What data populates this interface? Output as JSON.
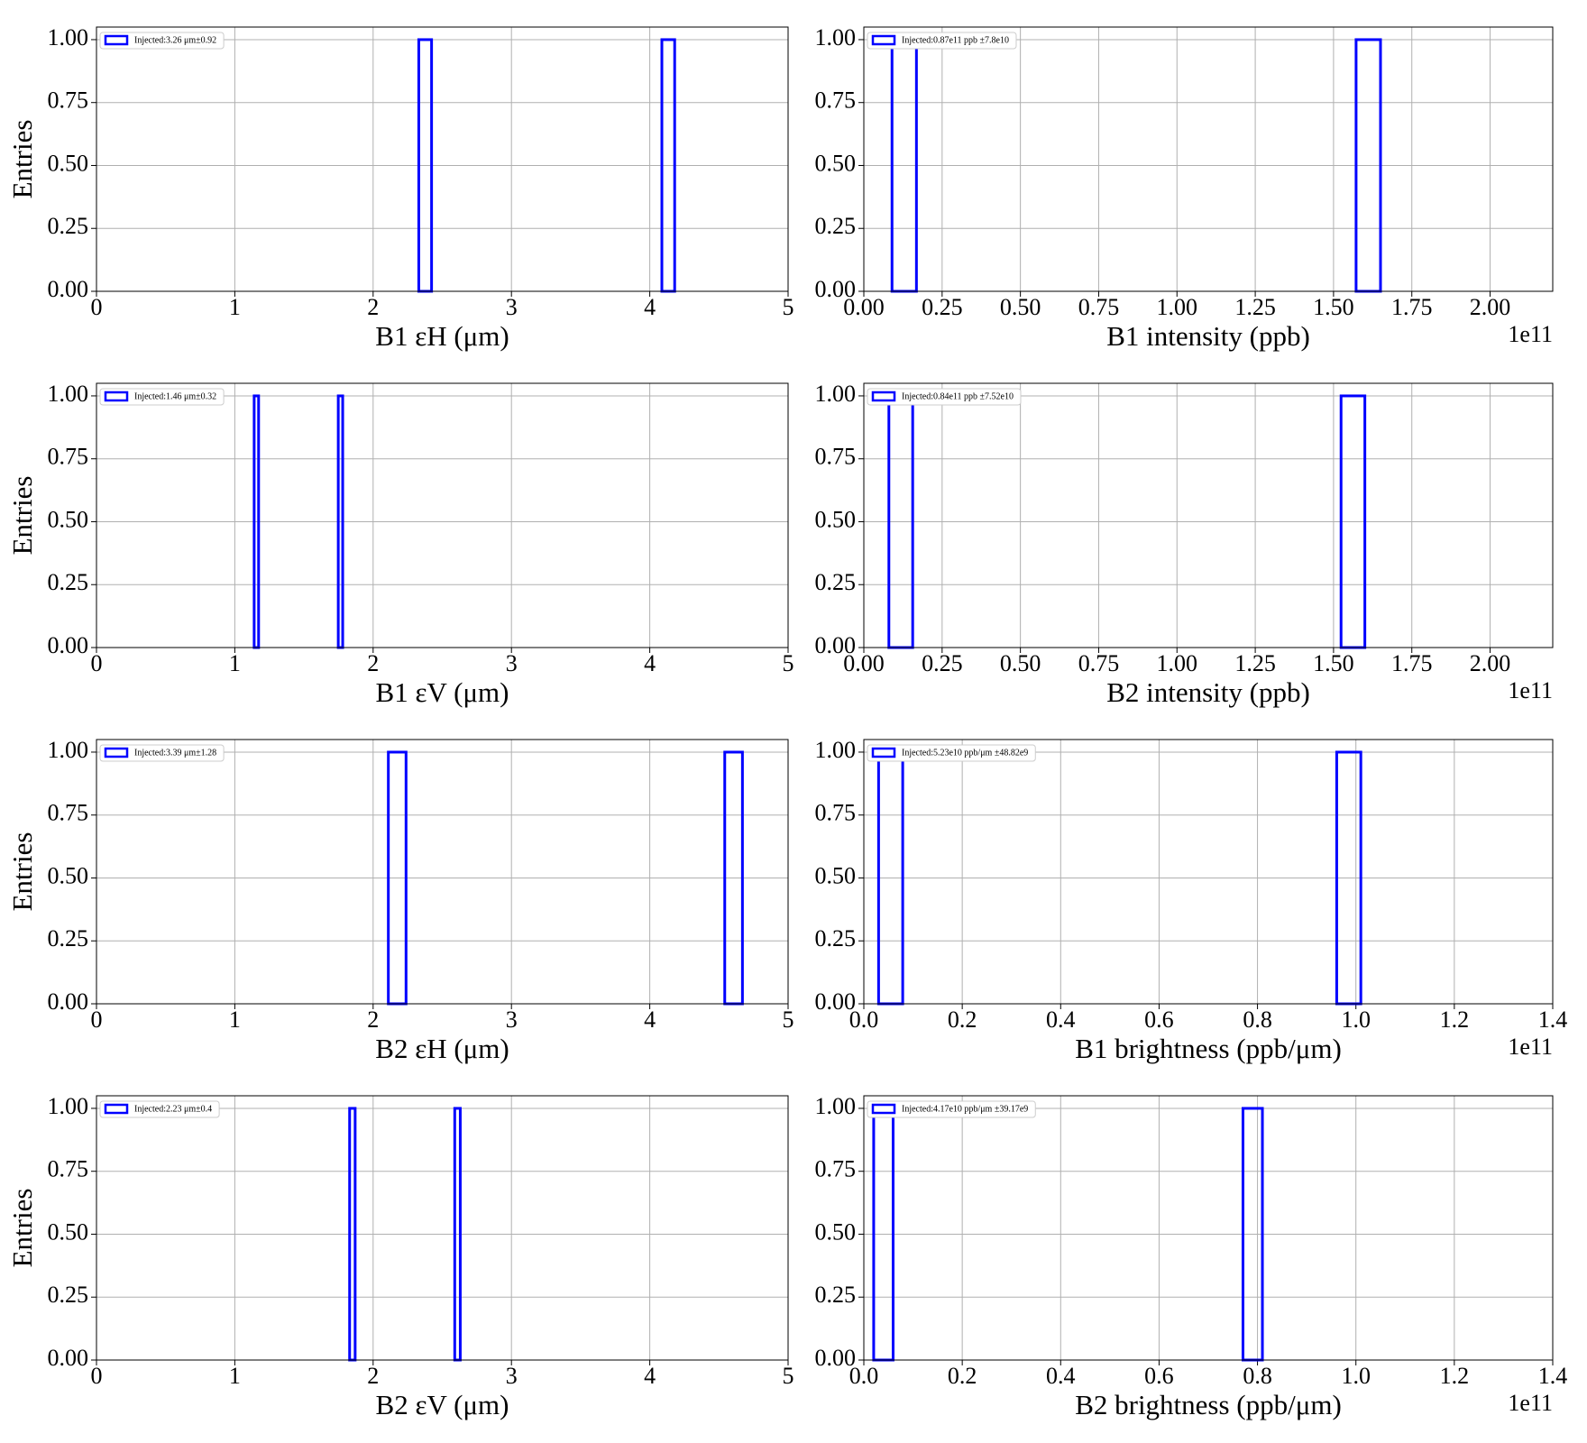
{
  "chart_data": [
    {
      "type": "histogram",
      "xlabel": "B1 εH (μm)",
      "ylabel": "Entries",
      "xlim": [
        0,
        5
      ],
      "xticks": [
        0,
        1,
        2,
        3,
        4,
        5
      ],
      "ylim": [
        0,
        1.05
      ],
      "yticks": [
        {
          "value": 0,
          "label": "0.00"
        },
        {
          "value": 0.25,
          "label": "0.25"
        },
        {
          "value": 0.5,
          "label": "0.50"
        },
        {
          "value": 0.75,
          "label": "0.75"
        },
        {
          "value": 1,
          "label": "1.00"
        }
      ],
      "grid": true,
      "legend": "upper left",
      "bins": [
        2.33,
        2.4225,
        2.515,
        2.6075,
        2.7,
        2.7925,
        2.885,
        2.9775,
        3.07,
        3.1625,
        3.255,
        3.3475,
        3.44,
        3.5325,
        3.625,
        3.7175,
        3.81,
        3.9025,
        3.995,
        4.0875,
        4.18
      ],
      "series": [
        {
          "name": "Injected:3.26 μm±0.92",
          "color": "#0000ff",
          "values": [
            1,
            0,
            0,
            0,
            0,
            0,
            0,
            0,
            0,
            0,
            0,
            0,
            0,
            0,
            0,
            0,
            0,
            0,
            0,
            1
          ]
        }
      ]
    },
    {
      "type": "histogram",
      "xlabel": "B1 intensity (ppb)",
      "offset": "1e11",
      "xlim": [
        0,
        2.2
      ],
      "xticks": [
        {
          "value": 0,
          "label": "0.00"
        },
        {
          "value": 0.25,
          "label": "0.25"
        },
        {
          "value": 0.5,
          "label": "0.50"
        },
        {
          "value": 0.75,
          "label": "0.75"
        },
        {
          "value": 1,
          "label": "1.00"
        },
        {
          "value": 1.25,
          "label": "1.25"
        },
        {
          "value": 1.5,
          "label": "1.50"
        },
        {
          "value": 1.75,
          "label": "1.75"
        },
        {
          "value": 2,
          "label": "2.00"
        }
      ],
      "ylim": [
        0,
        1.05
      ],
      "yticks": [
        {
          "value": 0,
          "label": "0.00"
        },
        {
          "value": 0.25,
          "label": "0.25"
        },
        {
          "value": 0.5,
          "label": "0.50"
        },
        {
          "value": 0.75,
          "label": "0.75"
        },
        {
          "value": 1,
          "label": "1.00"
        }
      ],
      "grid": true,
      "legend": "upper left",
      "bins": [
        0.09,
        0.168,
        0.246,
        0.324,
        0.402,
        0.48,
        0.558,
        0.636,
        0.714,
        0.792,
        0.87,
        0.948,
        1.026,
        1.104,
        1.182,
        1.26,
        1.338,
        1.416,
        1.494,
        1.572,
        1.65
      ],
      "series": [
        {
          "name": "Injected:0.87e11 ppb ±7.8e10",
          "color": "#0000ff",
          "values": [
            1,
            0,
            0,
            0,
            0,
            0,
            0,
            0,
            0,
            0,
            0,
            0,
            0,
            0,
            0,
            0,
            0,
            0,
            0,
            1
          ]
        }
      ]
    },
    {
      "type": "histogram",
      "xlabel": "B1 εV (μm)",
      "ylabel": "Entries",
      "xlim": [
        0,
        5
      ],
      "xticks": [
        0,
        1,
        2,
        3,
        4,
        5
      ],
      "ylim": [
        0,
        1.05
      ],
      "yticks": [
        {
          "value": 0,
          "label": "0.00"
        },
        {
          "value": 0.25,
          "label": "0.25"
        },
        {
          "value": 0.5,
          "label": "0.50"
        },
        {
          "value": 0.75,
          "label": "0.75"
        },
        {
          "value": 1,
          "label": "1.00"
        }
      ],
      "grid": true,
      "legend": "upper left",
      "bins": [
        1.14,
        1.172,
        1.204,
        1.236,
        1.268,
        1.3,
        1.332,
        1.364,
        1.396,
        1.428,
        1.46,
        1.492,
        1.524,
        1.556,
        1.588,
        1.62,
        1.652,
        1.684,
        1.716,
        1.748,
        1.78
      ],
      "series": [
        {
          "name": "Injected:1.46 μm±0.32",
          "color": "#0000ff",
          "values": [
            1,
            0,
            0,
            0,
            0,
            0,
            0,
            0,
            0,
            0,
            0,
            0,
            0,
            0,
            0,
            0,
            0,
            0,
            0,
            1
          ]
        }
      ]
    },
    {
      "type": "histogram",
      "xlabel": "B2 intensity (ppb)",
      "offset": "1e11",
      "xlim": [
        0,
        2.2
      ],
      "xticks": [
        {
          "value": 0,
          "label": "0.00"
        },
        {
          "value": 0.25,
          "label": "0.25"
        },
        {
          "value": 0.5,
          "label": "0.50"
        },
        {
          "value": 0.75,
          "label": "0.75"
        },
        {
          "value": 1,
          "label": "1.00"
        },
        {
          "value": 1.25,
          "label": "1.25"
        },
        {
          "value": 1.5,
          "label": "1.50"
        },
        {
          "value": 1.75,
          "label": "1.75"
        },
        {
          "value": 2,
          "label": "2.00"
        }
      ],
      "ylim": [
        0,
        1.05
      ],
      "yticks": [
        {
          "value": 0,
          "label": "0.00"
        },
        {
          "value": 0.25,
          "label": "0.25"
        },
        {
          "value": 0.5,
          "label": "0.50"
        },
        {
          "value": 0.75,
          "label": "0.75"
        },
        {
          "value": 1,
          "label": "1.00"
        }
      ],
      "grid": true,
      "legend": "upper left",
      "bins": [
        0.08,
        0.156,
        0.232,
        0.308,
        0.384,
        0.46,
        0.536,
        0.612,
        0.688,
        0.764,
        0.84,
        0.916,
        0.992,
        1.068,
        1.144,
        1.22,
        1.296,
        1.372,
        1.448,
        1.524,
        1.6
      ],
      "series": [
        {
          "name": "Injected:0.84e11 ppb ±7.52e10",
          "color": "#0000ff",
          "values": [
            1,
            0,
            0,
            0,
            0,
            0,
            0,
            0,
            0,
            0,
            0,
            0,
            0,
            0,
            0,
            0,
            0,
            0,
            0,
            1
          ]
        }
      ]
    },
    {
      "type": "histogram",
      "xlabel": "B2 εH (μm)",
      "ylabel": "Entries",
      "xlim": [
        0,
        5
      ],
      "xticks": [
        0,
        1,
        2,
        3,
        4,
        5
      ],
      "ylim": [
        0,
        1.05
      ],
      "yticks": [
        {
          "value": 0,
          "label": "0.00"
        },
        {
          "value": 0.25,
          "label": "0.25"
        },
        {
          "value": 0.5,
          "label": "0.50"
        },
        {
          "value": 0.75,
          "label": "0.75"
        },
        {
          "value": 1,
          "label": "1.00"
        }
      ],
      "grid": true,
      "legend": "upper left",
      "bins": [
        2.11,
        2.238,
        2.366,
        2.494,
        2.622,
        2.75,
        2.878,
        3.006,
        3.134,
        3.262,
        3.39,
        3.518,
        3.646,
        3.774,
        3.902,
        4.03,
        4.158,
        4.286,
        4.414,
        4.542,
        4.67
      ],
      "series": [
        {
          "name": "Injected:3.39 μm±1.28",
          "color": "#0000ff",
          "values": [
            1,
            0,
            0,
            0,
            0,
            0,
            0,
            0,
            0,
            0,
            0,
            0,
            0,
            0,
            0,
            0,
            0,
            0,
            0,
            1
          ]
        }
      ]
    },
    {
      "type": "histogram",
      "xlabel": "B1 brightness (ppb/μm)",
      "offset": "1e11",
      "xlim": [
        0,
        1.4
      ],
      "xticks": [
        {
          "value": 0,
          "label": "0.0"
        },
        0.2,
        0.4,
        0.6,
        0.8,
        {
          "value": 1,
          "label": "1.0"
        },
        1.2,
        1.4
      ],
      "ylim": [
        0,
        1.05
      ],
      "yticks": [
        {
          "value": 0,
          "label": "0.00"
        },
        {
          "value": 0.25,
          "label": "0.25"
        },
        {
          "value": 0.5,
          "label": "0.50"
        },
        {
          "value": 0.75,
          "label": "0.75"
        },
        {
          "value": 1,
          "label": "1.00"
        }
      ],
      "grid": true,
      "legend": "upper left",
      "bins": [
        0.03,
        0.079,
        0.128,
        0.177,
        0.226,
        0.275,
        0.324,
        0.373,
        0.422,
        0.471,
        0.52,
        0.569,
        0.618,
        0.667,
        0.716,
        0.765,
        0.814,
        0.863,
        0.912,
        0.961,
        1.01
      ],
      "series": [
        {
          "name": "Injected:5.23e10 ppb/μm ±48.82e9",
          "color": "#0000ff",
          "values": [
            1,
            0,
            0,
            0,
            0,
            0,
            0,
            0,
            0,
            0,
            0,
            0,
            0,
            0,
            0,
            0,
            0,
            0,
            0,
            1
          ]
        }
      ]
    },
    {
      "type": "histogram",
      "xlabel": "B2 εV (μm)",
      "ylabel": "Entries",
      "xlim": [
        0,
        5
      ],
      "xticks": [
        0,
        1,
        2,
        3,
        4,
        5
      ],
      "ylim": [
        0,
        1.05
      ],
      "yticks": [
        {
          "value": 0,
          "label": "0.00"
        },
        {
          "value": 0.25,
          "label": "0.25"
        },
        {
          "value": 0.5,
          "label": "0.50"
        },
        {
          "value": 0.75,
          "label": "0.75"
        },
        {
          "value": 1,
          "label": "1.00"
        }
      ],
      "grid": true,
      "legend": "upper left",
      "bins": [
        1.83,
        1.87,
        1.91,
        1.95,
        1.99,
        2.03,
        2.07,
        2.11,
        2.15,
        2.19,
        2.23,
        2.27,
        2.31,
        2.35,
        2.39,
        2.43,
        2.47,
        2.51,
        2.55,
        2.59,
        2.63
      ],
      "series": [
        {
          "name": "Injected:2.23 μm±0.4",
          "color": "#0000ff",
          "values": [
            1,
            0,
            0,
            0,
            0,
            0,
            0,
            0,
            0,
            0,
            0,
            0,
            0,
            0,
            0,
            0,
            0,
            0,
            0,
            1
          ]
        }
      ]
    },
    {
      "type": "histogram",
      "xlabel": "B2 brightness (ppb/μm)",
      "offset": "1e11",
      "xlim": [
        0,
        1.4
      ],
      "xticks": [
        {
          "value": 0,
          "label": "0.0"
        },
        0.2,
        0.4,
        0.6,
        0.8,
        {
          "value": 1,
          "label": "1.0"
        },
        1.2,
        1.4
      ],
      "ylim": [
        0,
        1.05
      ],
      "yticks": [
        {
          "value": 0,
          "label": "0.00"
        },
        {
          "value": 0.25,
          "label": "0.25"
        },
        {
          "value": 0.5,
          "label": "0.50"
        },
        {
          "value": 0.75,
          "label": "0.75"
        },
        {
          "value": 1,
          "label": "1.00"
        }
      ],
      "grid": true,
      "legend": "upper left",
      "bins": [
        0.02,
        0.0595,
        0.099,
        0.1385,
        0.178,
        0.2175,
        0.257,
        0.2965,
        0.336,
        0.3755,
        0.415,
        0.4545,
        0.494,
        0.5335,
        0.573,
        0.6125,
        0.652,
        0.6915,
        0.731,
        0.7705,
        0.81
      ],
      "series": [
        {
          "name": "Injected:4.17e10 ppb/μm ±39.17e9",
          "color": "#0000ff",
          "values": [
            1,
            0,
            0,
            0,
            0,
            0,
            0,
            0,
            0,
            0,
            0,
            0,
            0,
            0,
            0,
            0,
            0,
            0,
            0,
            1
          ]
        }
      ]
    }
  ]
}
